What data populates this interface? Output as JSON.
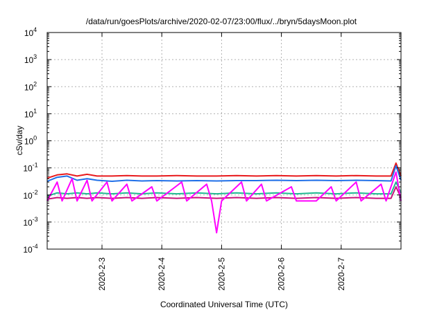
{
  "chart_data": {
    "type": "line",
    "title": "/data/run/goesPlots/archive/2020-02-07/23:00/flux/../bryn/5daysMoon.plot",
    "xlabel": "Coordinated Universal Time (UTC)",
    "ylabel": "cSv/day",
    "yscale": "log",
    "ylim": [
      0.0001,
      10000
    ],
    "xlim": [
      "2020-02-02 02:00",
      "2020-02-08 00:00"
    ],
    "grid": true,
    "x_ticks": [
      "2020-2-3",
      "2020-2-4",
      "2020-2-5",
      "2020-2-6",
      "2020-2-7"
    ],
    "y_ticks": [
      {
        "base": "10",
        "exp": "-4",
        "value": 0.0001
      },
      {
        "base": "10",
        "exp": "-3",
        "value": 0.001
      },
      {
        "base": "10",
        "exp": "-2",
        "value": 0.01
      },
      {
        "base": "10",
        "exp": "-1",
        "value": 0.1
      },
      {
        "base": "10",
        "exp": "0",
        "value": 1
      },
      {
        "base": "10",
        "exp": "1",
        "value": 10
      },
      {
        "base": "10",
        "exp": "2",
        "value": 100
      },
      {
        "base": "10",
        "exp": "3",
        "value": 1000
      },
      {
        "base": "10",
        "exp": "4",
        "value": 10000
      }
    ],
    "series": [
      {
        "color": "#e8191c",
        "points": [
          [
            "2020-02-02 02:00",
            0.042
          ],
          [
            "2020-02-02 06:00",
            0.055
          ],
          [
            "2020-02-02 10:00",
            0.06
          ],
          [
            "2020-02-02 14:00",
            0.05
          ],
          [
            "2020-02-02 18:00",
            0.058
          ],
          [
            "2020-02-02 22:00",
            0.05
          ],
          [
            "2020-02-03 04:00",
            0.05
          ],
          [
            "2020-02-03 10:00",
            0.052
          ],
          [
            "2020-02-03 16:00",
            0.05
          ],
          [
            "2020-02-03 22:00",
            0.05
          ],
          [
            "2020-02-04 06:00",
            0.052
          ],
          [
            "2020-02-04 14:00",
            0.05
          ],
          [
            "2020-02-04 22:00",
            0.05
          ],
          [
            "2020-02-05 06:00",
            0.052
          ],
          [
            "2020-02-05 14:00",
            0.05
          ],
          [
            "2020-02-05 22:00",
            0.052
          ],
          [
            "2020-02-06 06:00",
            0.05
          ],
          [
            "2020-02-06 14:00",
            0.052
          ],
          [
            "2020-02-06 22:00",
            0.05
          ],
          [
            "2020-02-07 06:00",
            0.052
          ],
          [
            "2020-02-07 14:00",
            0.05
          ],
          [
            "2020-02-07 20:00",
            0.05
          ],
          [
            "2020-02-07 22:00",
            0.15
          ],
          [
            "2020-02-08 00:00",
            0.05
          ]
        ]
      },
      {
        "color": "#1f6fe8",
        "points": [
          [
            "2020-02-02 02:00",
            0.032
          ],
          [
            "2020-02-02 06:00",
            0.045
          ],
          [
            "2020-02-02 10:00",
            0.05
          ],
          [
            "2020-02-02 14:00",
            0.035
          ],
          [
            "2020-02-02 18:00",
            0.04
          ],
          [
            "2020-02-02 22:00",
            0.035
          ],
          [
            "2020-02-03 04:00",
            0.032
          ],
          [
            "2020-02-03 10:00",
            0.035
          ],
          [
            "2020-02-03 16:00",
            0.033
          ],
          [
            "2020-02-03 22:00",
            0.034
          ],
          [
            "2020-02-04 06:00",
            0.033
          ],
          [
            "2020-02-04 14:00",
            0.034
          ],
          [
            "2020-02-04 22:00",
            0.033
          ],
          [
            "2020-02-05 06:00",
            0.034
          ],
          [
            "2020-02-05 14:00",
            0.034
          ],
          [
            "2020-02-05 22:00",
            0.035
          ],
          [
            "2020-02-06 06:00",
            0.034
          ],
          [
            "2020-02-06 14:00",
            0.035
          ],
          [
            "2020-02-06 22:00",
            0.034
          ],
          [
            "2020-02-07 06:00",
            0.035
          ],
          [
            "2020-02-07 14:00",
            0.034
          ],
          [
            "2020-02-07 20:00",
            0.033
          ],
          [
            "2020-02-07 22:00",
            0.12
          ],
          [
            "2020-02-08 00:00",
            0.035
          ]
        ]
      },
      {
        "color": "#1fb890",
        "points": [
          [
            "2020-02-02 02:00",
            0.009
          ],
          [
            "2020-02-02 06:00",
            0.012
          ],
          [
            "2020-02-02 10:00",
            0.011
          ],
          [
            "2020-02-02 14:00",
            0.012
          ],
          [
            "2020-02-02 18:00",
            0.011
          ],
          [
            "2020-02-02 22:00",
            0.012
          ],
          [
            "2020-02-03 04:00",
            0.011
          ],
          [
            "2020-02-03 10:00",
            0.012
          ],
          [
            "2020-02-03 16:00",
            0.011
          ],
          [
            "2020-02-03 22:00",
            0.012
          ],
          [
            "2020-02-04 06:00",
            0.011
          ],
          [
            "2020-02-04 14:00",
            0.012
          ],
          [
            "2020-02-04 22:00",
            0.011
          ],
          [
            "2020-02-05 06:00",
            0.012
          ],
          [
            "2020-02-05 14:00",
            0.011
          ],
          [
            "2020-02-05 22:00",
            0.012
          ],
          [
            "2020-02-06 06:00",
            0.011
          ],
          [
            "2020-02-06 14:00",
            0.012
          ],
          [
            "2020-02-06 22:00",
            0.011
          ],
          [
            "2020-02-07 06:00",
            0.012
          ],
          [
            "2020-02-07 14:00",
            0.011
          ],
          [
            "2020-02-07 20:00",
            0.011
          ],
          [
            "2020-02-07 22:00",
            0.03
          ],
          [
            "2020-02-08 00:00",
            0.012
          ]
        ]
      },
      {
        "color": "#c8127a",
        "points": [
          [
            "2020-02-02 02:00",
            0.007
          ],
          [
            "2020-02-02 06:00",
            0.008
          ],
          [
            "2020-02-02 10:00",
            0.0075
          ],
          [
            "2020-02-02 14:00",
            0.008
          ],
          [
            "2020-02-02 18:00",
            0.0075
          ],
          [
            "2020-02-02 22:00",
            0.008
          ],
          [
            "2020-02-03 04:00",
            0.0075
          ],
          [
            "2020-02-03 10:00",
            0.008
          ],
          [
            "2020-02-03 16:00",
            0.0075
          ],
          [
            "2020-02-03 22:00",
            0.008
          ],
          [
            "2020-02-04 06:00",
            0.0075
          ],
          [
            "2020-02-04 14:00",
            0.008
          ],
          [
            "2020-02-04 22:00",
            0.0075
          ],
          [
            "2020-02-05 06:00",
            0.008
          ],
          [
            "2020-02-05 14:00",
            0.0075
          ],
          [
            "2020-02-05 22:00",
            0.008
          ],
          [
            "2020-02-06 06:00",
            0.0075
          ],
          [
            "2020-02-06 14:00",
            0.008
          ],
          [
            "2020-02-06 22:00",
            0.0075
          ],
          [
            "2020-02-07 06:00",
            0.008
          ],
          [
            "2020-02-07 14:00",
            0.0075
          ],
          [
            "2020-02-07 20:00",
            0.0075
          ],
          [
            "2020-02-07 22:00",
            0.02
          ],
          [
            "2020-02-08 00:00",
            0.008
          ]
        ]
      },
      {
        "color": "#ff00ff",
        "points": [
          [
            "2020-02-02 02:00",
            0.006
          ],
          [
            "2020-02-02 06:00",
            0.03
          ],
          [
            "2020-02-02 08:00",
            0.006
          ],
          [
            "2020-02-02 12:00",
            0.04
          ],
          [
            "2020-02-02 14:00",
            0.006
          ],
          [
            "2020-02-02 18:00",
            0.035
          ],
          [
            "2020-02-02 20:00",
            0.006
          ],
          [
            "2020-02-03 02:00",
            0.03
          ],
          [
            "2020-02-03 04:00",
            0.006
          ],
          [
            "2020-02-03 10:00",
            0.025
          ],
          [
            "2020-02-03 12:00",
            0.006
          ],
          [
            "2020-02-03 20:00",
            0.02
          ],
          [
            "2020-02-03 22:00",
            0.006
          ],
          [
            "2020-02-04 08:00",
            0.03
          ],
          [
            "2020-02-04 10:00",
            0.006
          ],
          [
            "2020-02-04 18:00",
            0.025
          ],
          [
            "2020-02-04 20:00",
            0.006
          ],
          [
            "2020-02-04 22:00",
            0.0004
          ],
          [
            "2020-02-05 00:00",
            0.006
          ],
          [
            "2020-02-05 08:00",
            0.03
          ],
          [
            "2020-02-05 10:00",
            0.006
          ],
          [
            "2020-02-05 16:00",
            0.025
          ],
          [
            "2020-02-05 18:00",
            0.006
          ],
          [
            "2020-02-06 04:00",
            0.02
          ],
          [
            "2020-02-06 06:00",
            0.006
          ],
          [
            "2020-02-06 14:00",
            0.006
          ],
          [
            "2020-02-06 20:00",
            0.02
          ],
          [
            "2020-02-06 22:00",
            0.006
          ],
          [
            "2020-02-07 06:00",
            0.03
          ],
          [
            "2020-02-07 08:00",
            0.006
          ],
          [
            "2020-02-07 16:00",
            0.025
          ],
          [
            "2020-02-07 18:00",
            0.006
          ],
          [
            "2020-02-07 22:00",
            0.07
          ],
          [
            "2020-02-08 00:00",
            0.006
          ]
        ]
      }
    ]
  }
}
